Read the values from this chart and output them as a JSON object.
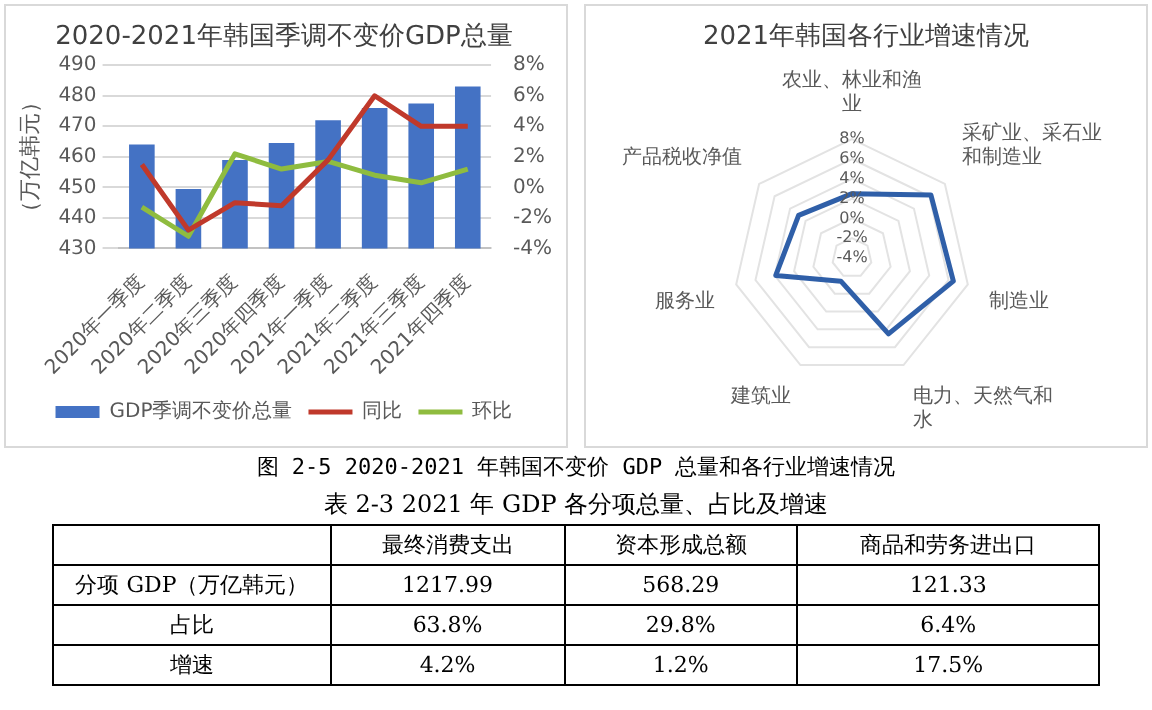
{
  "chart_data": [
    {
      "type": "bar",
      "title": "2020-2021年韩国季调不变价GDP总量",
      "ylabel": "（万亿韩元）",
      "categories": [
        "2020年一季度",
        "2020年二季度",
        "2020年三季度",
        "2020年四季度",
        "2021年一季度",
        "2021年二季度",
        "2021年三季度",
        "2021年四季度"
      ],
      "series": [
        {
          "name": "GDP季调不变价总量",
          "type": "bar",
          "color": "#4472c4",
          "values": [
            464,
            449.5,
            459,
            464.5,
            472,
            476,
            477.5,
            483
          ]
        },
        {
          "name": "同比",
          "type": "line",
          "axis": "y2",
          "color": "#c0392b",
          "values": [
            1.5,
            -2.8,
            -1,
            -1.2,
            1.8,
            6,
            4,
            4
          ]
        },
        {
          "name": "环比",
          "type": "line",
          "axis": "y2",
          "color": "#8fbc3f",
          "values": [
            -1.3,
            -3.2,
            2.2,
            1.2,
            1.7,
            0.8,
            0.3,
            1.2
          ]
        }
      ],
      "ylim": [
        430,
        490
      ],
      "yticks": [
        430,
        440,
        450,
        460,
        470,
        480,
        490
      ],
      "y2lim": [
        -4,
        8
      ],
      "y2ticks": [
        {
          "value": -4,
          "label": "-4%"
        },
        {
          "value": -2,
          "label": "-2%"
        },
        {
          "value": 0,
          "label": "0%"
        },
        {
          "value": 2,
          "label": "2%"
        },
        {
          "value": 4,
          "label": "4%"
        },
        {
          "value": 6,
          "label": "6%"
        },
        {
          "value": 8,
          "label": "8%"
        }
      ],
      "grid": "y",
      "legend": "bottom",
      "marker": "none",
      "annotations": [
        "图 2-5 2020-2021 年韩国不变价 GDP 总量和各行业增速情况"
      ]
    },
    {
      "type": "radar",
      "title": "2021年韩国各行业增速情况",
      "categories": [
        "农业、林业和渔业",
        "采矿业、采石业和制造业",
        "制造业",
        "电力、天然气和水",
        "建筑业",
        "服务业",
        "产品税收净值"
      ],
      "series": [
        {
          "color": "#2f5fa8",
          "values": [
            2.5,
            6.2,
            6.5,
            4.5,
            -1.4,
            3.9,
            2.9
          ]
        }
      ],
      "ylim": [
        -4,
        8
      ],
      "yticks": [
        {
          "value": -4,
          "label": "-4%"
        },
        {
          "value": -2,
          "label": "-2%"
        },
        {
          "value": 0,
          "label": "0%"
        },
        {
          "value": 2,
          "label": "2%"
        },
        {
          "value": 4,
          "label": "4%"
        },
        {
          "value": 6,
          "label": "6%"
        },
        {
          "value": 8,
          "label": "8%"
        }
      ],
      "grid": true
    },
    {
      "type": "other",
      "title": "表 2-3 2021 年 GDP 各分项总量、占比及增速",
      "categories": [
        "最终消费支出",
        "资本形成总额",
        "商品和劳务进出口"
      ],
      "y_categories": [
        "分项 GDP（万亿韩元）",
        "占比",
        "增速"
      ],
      "cell_labels": [
        [
          "1217.99",
          "568.29",
          "121.33"
        ],
        [
          "63.8%",
          "29.8%",
          "6.4%"
        ],
        [
          "4.2%",
          "1.2%",
          "17.5%"
        ]
      ]
    }
  ]
}
